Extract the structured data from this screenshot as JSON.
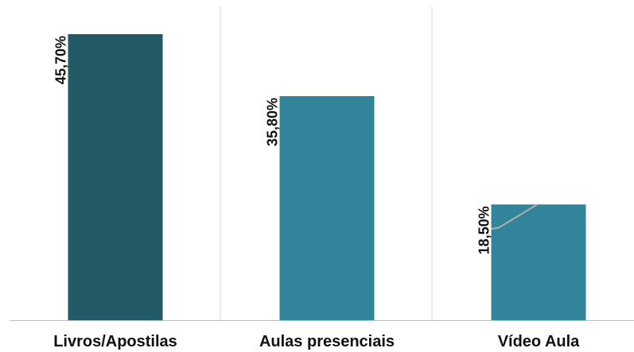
{
  "chart_data": {
    "type": "bar",
    "categories": [
      "Livros/Apostilas",
      "Aulas presenciais",
      "Vídeo Aula"
    ],
    "values": [
      45.7,
      35.8,
      18.5
    ],
    "value_labels": [
      "45,70%",
      "35,80%",
      "18,50%"
    ],
    "title": "",
    "xlabel": "",
    "ylabel": "",
    "ylim": [
      0,
      50
    ],
    "grid": false,
    "legend": "none"
  },
  "colors": {
    "bar_highlight": "#245a66",
    "bar_default": "#32849a",
    "divider": "#d9d9d9",
    "axis": "#bfbfbf",
    "overlay_line": "#b0b0b0"
  }
}
